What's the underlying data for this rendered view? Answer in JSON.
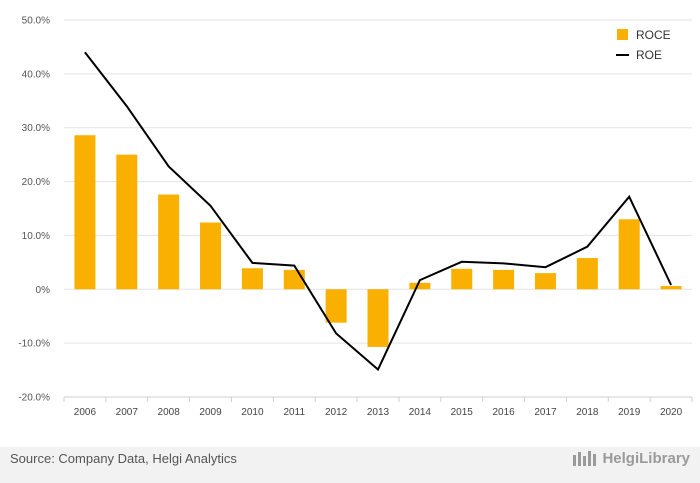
{
  "chart_data": {
    "type": "bar",
    "categories": [
      "2006",
      "2007",
      "2008",
      "2009",
      "2010",
      "2011",
      "2012",
      "2013",
      "2014",
      "2015",
      "2016",
      "2017",
      "2018",
      "2019",
      "2020"
    ],
    "series": [
      {
        "name": "ROCE",
        "kind": "bar",
        "color": "#f9b000",
        "values": [
          28.6,
          25.0,
          17.6,
          12.4,
          3.9,
          3.6,
          -6.2,
          -10.7,
          1.2,
          3.8,
          3.6,
          3.0,
          5.8,
          13.0,
          0.6
        ]
      },
      {
        "name": "ROE",
        "kind": "line",
        "color": "#000000",
        "values": [
          44.0,
          34.0,
          22.8,
          15.5,
          4.9,
          4.4,
          -8.2,
          -14.9,
          1.7,
          5.1,
          4.8,
          4.1,
          7.9,
          17.2,
          0.8
        ]
      }
    ],
    "ylim": [
      -20,
      50
    ],
    "yticks": [
      "-20.0%",
      "-10.0%",
      "0%",
      "10.0%",
      "20.0%",
      "30.0%",
      "40.0%",
      "50.0%"
    ],
    "ytick_values": [
      -20,
      -10,
      0,
      10,
      20,
      30,
      40,
      50
    ],
    "grid": true,
    "legend_position": "top-right"
  },
  "footer": {
    "source": "Source: Company Data, Helgi Analytics",
    "brand": "HelgiLibrary"
  }
}
